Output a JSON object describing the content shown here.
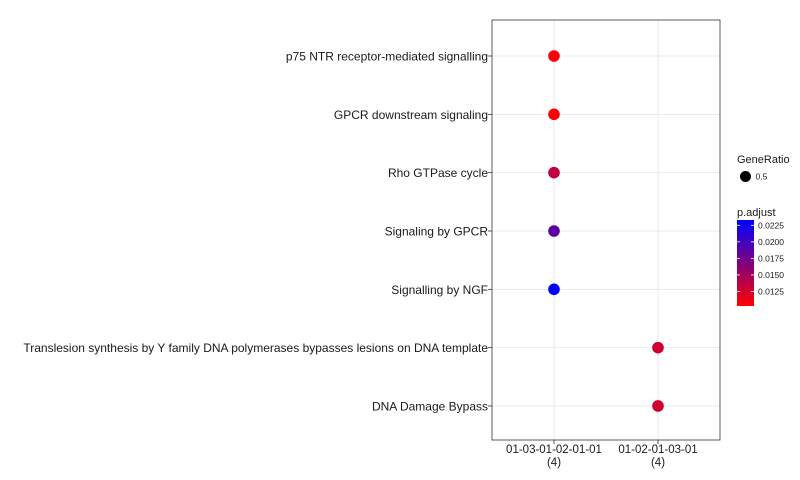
{
  "chart_data": {
    "type": "scatter",
    "x_categories": [
      {
        "label": "01-03-01-02-01-01",
        "count": "(4)"
      },
      {
        "label": "01-02-01-03-01",
        "count": "(4)"
      }
    ],
    "y_categories": [
      "p75 NTR receptor-mediated signalling",
      "GPCR downstream signaling",
      "Rho GTPase cycle",
      "Signaling by GPCR",
      "Signalling by NGF",
      "Translesion synthesis by Y family DNA polymerases bypasses lesions on DNA template",
      "DNA Damage Bypass"
    ],
    "points": [
      {
        "x": "01-03-01-02-01-01",
        "y": "p75 NTR receptor-mediated signalling",
        "gene_ratio": 0.5,
        "p_adjust": 0.0105
      },
      {
        "x": "01-03-01-02-01-01",
        "y": "GPCR downstream signaling",
        "gene_ratio": 0.5,
        "p_adjust": 0.0105
      },
      {
        "x": "01-03-01-02-01-01",
        "y": "Rho GTPase cycle",
        "gene_ratio": 0.5,
        "p_adjust": 0.0135
      },
      {
        "x": "01-03-01-02-01-01",
        "y": "Signaling by GPCR",
        "gene_ratio": 0.5,
        "p_adjust": 0.0185
      },
      {
        "x": "01-03-01-02-01-01",
        "y": "Signalling by NGF",
        "gene_ratio": 0.5,
        "p_adjust": 0.0232
      },
      {
        "x": "01-02-01-03-01",
        "y": "Translesion synthesis by Y family DNA polymerases bypasses lesions on DNA template",
        "gene_ratio": 0.5,
        "p_adjust": 0.0128
      },
      {
        "x": "01-02-01-03-01",
        "y": "DNA Damage Bypass",
        "gene_ratio": 0.5,
        "p_adjust": 0.0128
      }
    ],
    "size_legend": {
      "title": "GeneRatio",
      "entries": [
        "0.5"
      ]
    },
    "color_legend": {
      "title": "p.adjust",
      "min": 0.0103,
      "max": 0.0233,
      "ticks": [
        0.0125,
        0.015,
        0.0175,
        0.02,
        0.0225
      ],
      "tick_labels": [
        "0.0125",
        "0.0150",
        "0.0175",
        "0.0200",
        "0.0225"
      ],
      "low_color": "#ff0000",
      "high_color": "#0000ff"
    },
    "grid": true,
    "legend_placement": "right"
  }
}
